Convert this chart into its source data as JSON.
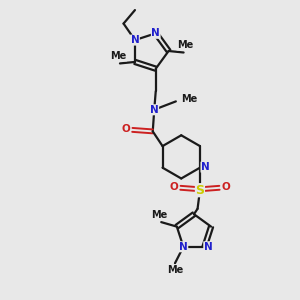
{
  "bg_color": "#e8e8e8",
  "bond_color": "#1a1a1a",
  "N_color": "#2020cc",
  "O_color": "#cc2020",
  "S_color": "#cccc00",
  "line_width": 1.6,
  "font_size_atom": 7.5,
  "fig_size": [
    3.0,
    3.0
  ],
  "dpi": 100,
  "xlim": [
    0,
    10
  ],
  "ylim": [
    0,
    10
  ]
}
